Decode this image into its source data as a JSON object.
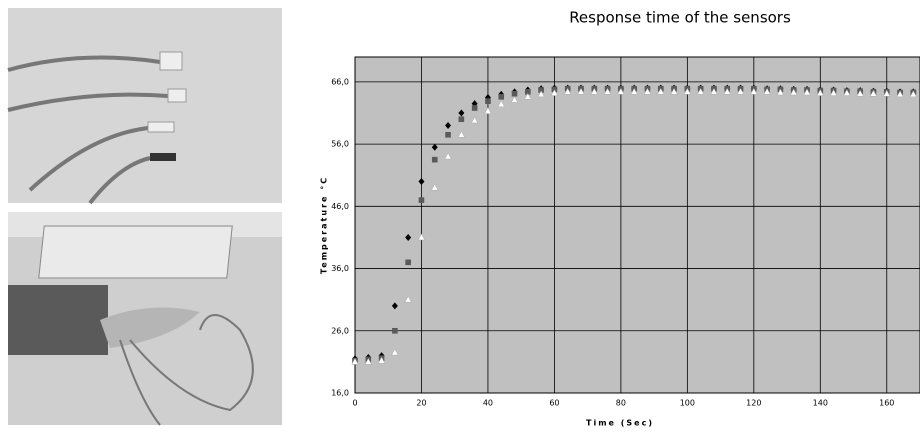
{
  "chart_data": {
    "type": "scatter",
    "title": "Response time of the sensors",
    "xlabel": "Time (Sec)",
    "ylabel": "Temperature °C",
    "xlim": [
      0,
      170
    ],
    "ylim": [
      16,
      70
    ],
    "xticks": [
      0,
      20,
      40,
      60,
      80,
      100,
      120,
      140,
      160
    ],
    "yticks": [
      {
        "value": 16,
        "label": "16,0"
      },
      {
        "value": 26,
        "label": "26,0"
      },
      {
        "value": 36,
        "label": "36,0"
      },
      {
        "value": 46,
        "label": "46,0"
      },
      {
        "value": 56,
        "label": "56,0"
      },
      {
        "value": 66,
        "label": "66,0"
      }
    ],
    "grid": true,
    "background": "#c0c0c0",
    "x": [
      0,
      4,
      8,
      12,
      16,
      20,
      24,
      28,
      32,
      36,
      40,
      44,
      48,
      52,
      56,
      60,
      64,
      68,
      72,
      76,
      80,
      84,
      88,
      92,
      96,
      100,
      104,
      108,
      112,
      116,
      120,
      124,
      128,
      132,
      136,
      140,
      144,
      148,
      152,
      156,
      160,
      164,
      168
    ],
    "series": [
      {
        "color": "#000000",
        "marker": "diamond",
        "values": [
          21.5,
          21.7,
          22,
          30,
          41,
          50,
          55.5,
          59,
          61,
          62.5,
          63.5,
          64,
          64.4,
          64.7,
          64.9,
          65,
          65,
          65,
          65,
          65,
          65,
          65,
          65,
          65,
          65,
          65,
          65,
          65,
          65,
          65,
          65,
          64.9,
          64.9,
          64.8,
          64.8,
          64.7,
          64.7,
          64.6,
          64.6,
          64.5,
          64.5,
          64.4,
          64.4
        ]
      },
      {
        "color": "#5a5a5a",
        "marker": "square",
        "values": [
          21.2,
          21.4,
          21.6,
          26,
          37,
          47,
          53.5,
          57.5,
          60,
          61.8,
          62.9,
          63.6,
          64.1,
          64.4,
          64.7,
          64.8,
          64.9,
          64.9,
          64.9,
          64.9,
          64.9,
          64.9,
          64.9,
          64.9,
          64.9,
          64.9,
          64.9,
          64.9,
          64.9,
          64.9,
          64.9,
          64.8,
          64.8,
          64.7,
          64.7,
          64.6,
          64.6,
          64.5,
          64.5,
          64.4,
          64.4,
          64.3,
          64.3
        ]
      },
      {
        "color": "#ffffff",
        "marker": "triangle",
        "values": [
          21,
          21,
          21.2,
          22.5,
          31,
          41,
          49,
          54,
          57.5,
          59.8,
          61.3,
          62.4,
          63.1,
          63.6,
          64,
          64.2,
          64.4,
          64.4,
          64.4,
          64.4,
          64.4,
          64.4,
          64.4,
          64.4,
          64.4,
          64.4,
          64.4,
          64.4,
          64.4,
          64.4,
          64.4,
          64.4,
          64.3,
          64.3,
          64.3,
          64.2,
          64.2,
          64.2,
          64.1,
          64.1,
          64.1,
          64,
          64
        ]
      }
    ]
  }
}
